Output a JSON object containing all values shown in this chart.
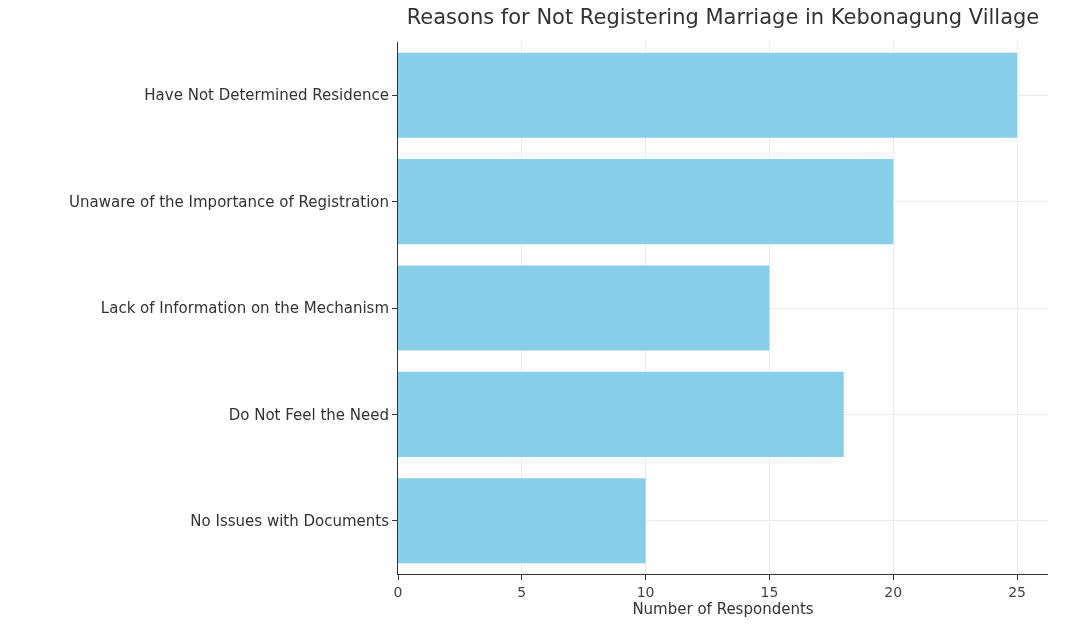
{
  "chart_data": {
    "type": "bar",
    "orientation": "horizontal",
    "title": "Reasons for Not Registering Marriage in Kebonagung Village",
    "xlabel": "Number of Respondents",
    "categories": [
      "Have Not Determined Residence",
      "Unaware of the Importance of Registration",
      "Lack of Information on the Mechanism",
      "Do Not Feel the Need",
      "No Issues with Documents"
    ],
    "values": [
      25,
      20,
      15,
      18,
      10
    ],
    "color": "#87ceeb",
    "xlim": [
      0,
      26.25
    ],
    "xticks": [
      0,
      5,
      10,
      15,
      20,
      25
    ],
    "grid": true
  }
}
